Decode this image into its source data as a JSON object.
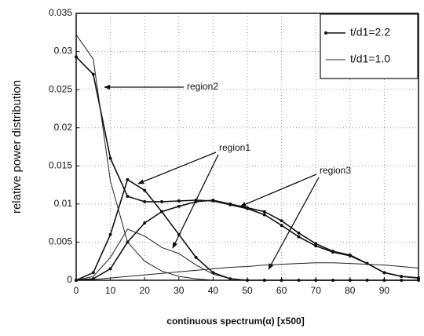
{
  "chart_data": {
    "type": "line",
    "x": [
      0,
      5,
      10,
      15,
      20,
      25,
      30,
      35,
      40,
      45,
      50,
      55,
      60,
      65,
      70,
      75,
      80,
      85,
      90,
      95,
      100
    ],
    "xlim": [
      0,
      100
    ],
    "xticks": [
      0,
      10,
      20,
      30,
      40,
      50,
      60,
      70,
      80,
      90
    ],
    "ylim": [
      0,
      0.035
    ],
    "yticks": [
      0,
      0.005,
      0.01,
      0.015,
      0.02,
      0.025,
      0.03,
      0.035
    ],
    "grid": true,
    "legend": "upper right",
    "xlabel": "continuous spectrum(α)    [x500]",
    "ylabel": "relative power distribution",
    "series": [
      {
        "name": "t/d1=2.2",
        "color": "#111111",
        "marker": "dot",
        "regions": [
          [
            0.0293,
            0.027,
            0.016,
            0.011,
            0.0103,
            0.0103,
            0.0104,
            0.0105,
            0.0104,
            0.0099,
            0.0094,
            0.0086,
            0.0072,
            0.0057,
            0.0045,
            0.0037,
            0.0032,
            0.0022,
            0.001,
            0.0005,
            0.0003
          ],
          [
            0,
            0.001,
            0.006,
            0.0132,
            0.0118,
            0.009,
            0.006,
            0.003,
            0.001,
            0.0002,
            0,
            0,
            0,
            0,
            0,
            0,
            0,
            0,
            0,
            0,
            0
          ],
          [
            0,
            0.0002,
            0.0015,
            0.005,
            0.0075,
            0.009,
            0.0097,
            0.0103,
            0.0105,
            0.01,
            0.0095,
            0.009,
            0.0078,
            0.0062,
            0.0048,
            0.0038,
            0.0033,
            0.0022,
            0.001,
            0.0005,
            0.0003
          ]
        ]
      },
      {
        "name": "t/d1=1.0",
        "color": "#222222",
        "marker": "none",
        "regions": [
          [
            0.0322,
            0.029,
            0.013,
            0.005,
            0.0025,
            0.0012,
            0.0005,
            0.0002,
            0,
            0,
            0,
            0,
            0,
            0,
            0,
            0,
            0,
            0,
            0,
            0,
            0
          ],
          [
            0,
            0.0005,
            0.003,
            0.0067,
            0.0058,
            0.0043,
            0.0035,
            0.002,
            0.0008,
            0.0002,
            0,
            0,
            0,
            0,
            0,
            0,
            0,
            0,
            0,
            0,
            0
          ],
          [
            0,
            0.0001,
            0.0003,
            0.0005,
            0.0007,
            0.0009,
            0.0011,
            0.0013,
            0.0015,
            0.0017,
            0.0018,
            0.002,
            0.0021,
            0.0022,
            0.0023,
            0.0023,
            0.0022,
            0.0021,
            0.002,
            0.0018,
            0.0016
          ]
        ]
      }
    ],
    "annotations": [
      "region2",
      "region1",
      "region3"
    ]
  }
}
